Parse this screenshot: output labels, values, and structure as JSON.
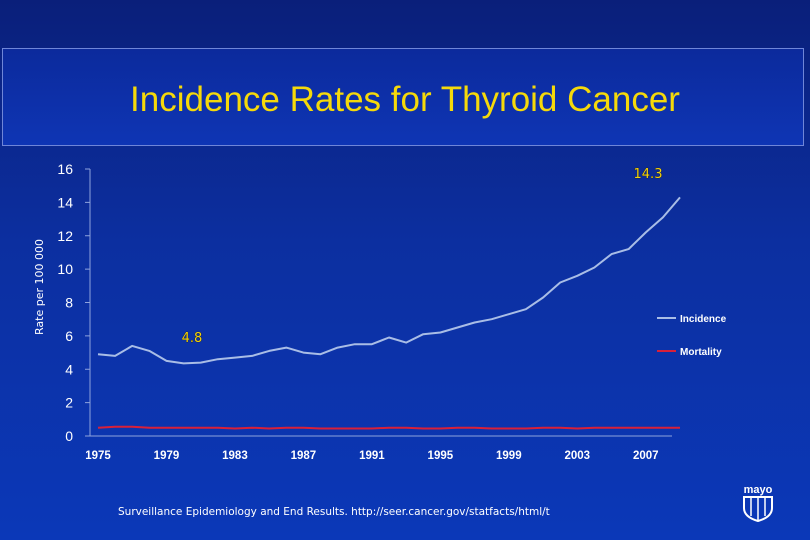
{
  "title": "Incidence Rates for Thyroid Cancer",
  "footer": "Surveillance Epidemiology and End Results. http://seer.cancer.gov/statfacts/html/t",
  "logo_text": "mayo",
  "colors": {
    "background": "#0b2fa6",
    "title": "#f5d90a",
    "incidence": "#a9bde6",
    "mortality": "#d8203a",
    "axis_text": "#ffffff",
    "annotation": "#f2d10e"
  },
  "chart_data": {
    "type": "line",
    "title": "Incidence Rates for Thyroid Cancer",
    "xlabel": "",
    "ylabel": "Rate per 100 000",
    "xlim": [
      1975,
      2009
    ],
    "ylim": [
      0,
      16
    ],
    "yticks": [
      0,
      2,
      4,
      6,
      8,
      10,
      12,
      14,
      16
    ],
    "xticks": [
      1975,
      1979,
      1983,
      1987,
      1991,
      1995,
      1999,
      2003,
      2007
    ],
    "grid": false,
    "legend_position": "right",
    "x": [
      1975,
      1976,
      1977,
      1978,
      1979,
      1980,
      1981,
      1982,
      1983,
      1984,
      1985,
      1986,
      1987,
      1988,
      1989,
      1990,
      1991,
      1992,
      1993,
      1994,
      1995,
      1996,
      1997,
      1998,
      1999,
      2000,
      2001,
      2002,
      2003,
      2004,
      2005,
      2006,
      2007,
      2008,
      2009
    ],
    "series": [
      {
        "name": "Incidence",
        "values": [
          4.9,
          4.8,
          5.4,
          5.1,
          4.5,
          4.35,
          4.4,
          4.6,
          4.7,
          4.8,
          5.1,
          5.3,
          5.0,
          4.9,
          5.3,
          5.5,
          5.5,
          5.9,
          5.6,
          6.1,
          6.2,
          6.5,
          6.8,
          7.0,
          7.3,
          7.6,
          8.3,
          9.2,
          9.6,
          10.1,
          10.9,
          11.2,
          12.2,
          13.1,
          14.3
        ]
      },
      {
        "name": "Mortality",
        "values": [
          0.5,
          0.55,
          0.55,
          0.5,
          0.5,
          0.5,
          0.5,
          0.5,
          0.45,
          0.5,
          0.45,
          0.5,
          0.5,
          0.45,
          0.45,
          0.45,
          0.45,
          0.5,
          0.5,
          0.45,
          0.45,
          0.5,
          0.5,
          0.45,
          0.45,
          0.45,
          0.5,
          0.5,
          0.45,
          0.5,
          0.5,
          0.5,
          0.5,
          0.5,
          0.5
        ]
      }
    ],
    "annotations": [
      {
        "label": "14.3",
        "x": 2009,
        "y": 14.3
      },
      {
        "label": "4.8",
        "x": 1976,
        "y": 4.8
      }
    ]
  }
}
